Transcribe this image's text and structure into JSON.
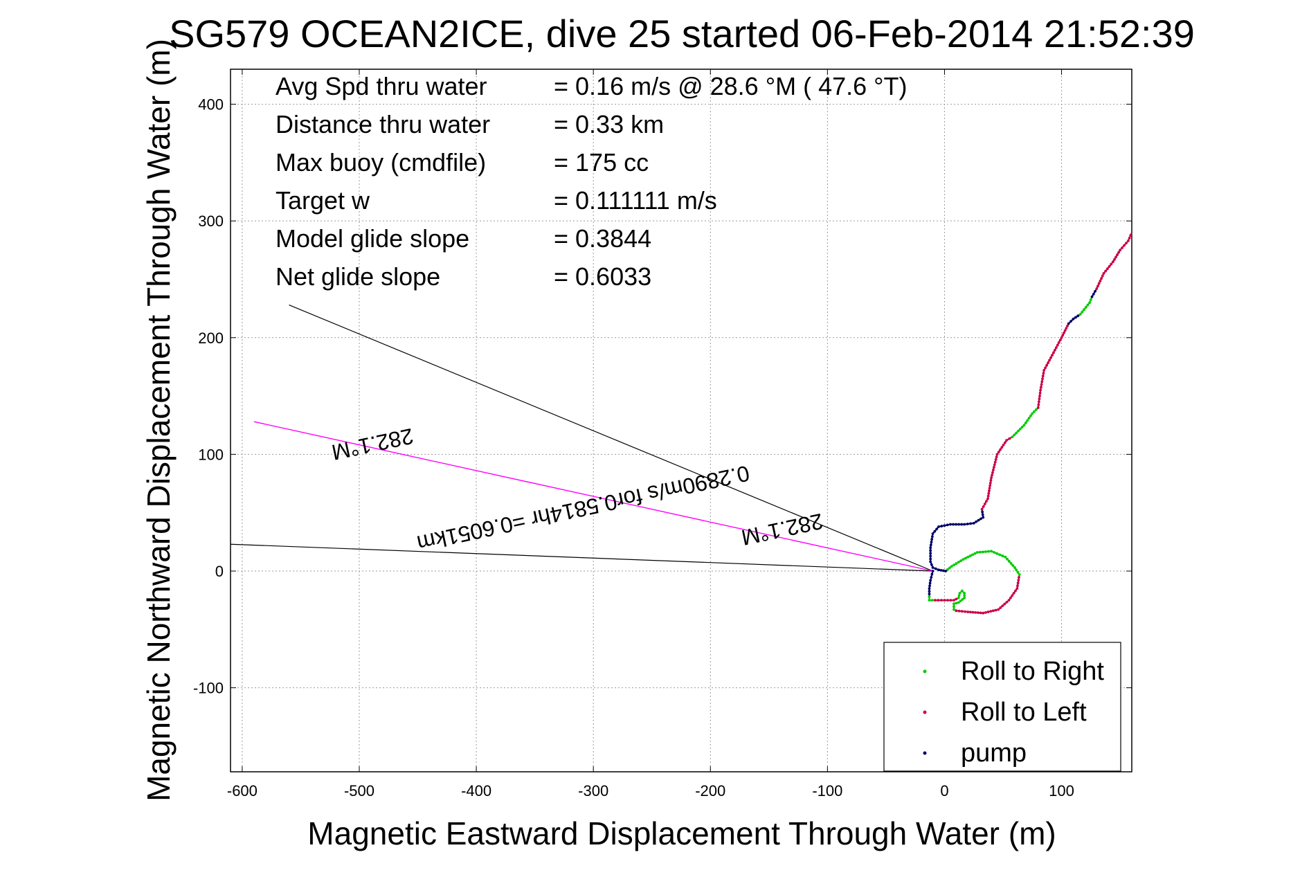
{
  "chart_data": {
    "type": "line",
    "title": "SG579 OCEAN2ICE, dive 25 started 06-Feb-2014 21:52:39",
    "xlabel": "Magnetic Eastward Displacement Through Water (m)",
    "ylabel": "Magnetic Northward Displacement Through Water (m)",
    "xlim": [
      -610,
      160
    ],
    "ylim": [
      -172,
      430
    ],
    "xticks": [
      -600,
      -500,
      -400,
      -300,
      -200,
      -100,
      0,
      100
    ],
    "yticks": [
      -100,
      0,
      100,
      200,
      300,
      400
    ],
    "grid": true,
    "legend_position": "bottom-right",
    "stats": [
      {
        "label": "Avg Spd thru water",
        "value": "=  0.16 m/s @  28.6 °M ( 47.6 °T)"
      },
      {
        "label": "Distance thru water",
        "value": "=  0.33 km"
      },
      {
        "label": "Max buoy (cmdfile)",
        "value": "= 175 cc"
      },
      {
        "label": "Target w",
        "value": "= 0.111111 m/s"
      },
      {
        "label": "Model glide slope",
        "value": "= 0.3844"
      },
      {
        "label": "Net glide slope",
        "value": "= 0.6033"
      }
    ],
    "colors": {
      "roll_right": "#00cc00",
      "roll_left": "#cc0044",
      "pump": "#000066",
      "current": "#ff00ff",
      "wedge": "#000000"
    },
    "series": [
      {
        "name": "Roll to Right",
        "color": "#00cc00",
        "marker": "dot"
      },
      {
        "name": "Roll to Left",
        "color": "#cc0044",
        "marker": "dot"
      },
      {
        "name": "pump",
        "color": "#000066",
        "marker": "dot"
      }
    ],
    "track": [
      {
        "mode": "pump",
        "points": [
          [
            -10,
            0
          ],
          [
            -12,
            -8
          ],
          [
            -13,
            -15
          ],
          [
            -13,
            -22
          ]
        ]
      },
      {
        "mode": "right",
        "points": [
          [
            -13,
            -22
          ],
          [
            -13,
            -25
          ],
          [
            -8,
            -25
          ]
        ]
      },
      {
        "mode": "left",
        "points": [
          [
            -8,
            -25
          ],
          [
            0,
            -25
          ],
          [
            8,
            -25
          ],
          [
            12,
            -23
          ]
        ]
      },
      {
        "mode": "right",
        "points": [
          [
            12,
            -23
          ],
          [
            13,
            -19
          ],
          [
            15,
            -17
          ],
          [
            17,
            -19
          ],
          [
            17,
            -23
          ],
          [
            12,
            -27
          ],
          [
            8,
            -28
          ],
          [
            8,
            -33
          ],
          [
            10,
            -34
          ]
        ]
      },
      {
        "mode": "left",
        "points": [
          [
            10,
            -34
          ],
          [
            20,
            -35
          ],
          [
            33,
            -36
          ],
          [
            46,
            -33
          ],
          [
            55,
            -25
          ],
          [
            62,
            -15
          ],
          [
            64,
            -3
          ]
        ]
      },
      {
        "mode": "right",
        "points": [
          [
            64,
            -3
          ],
          [
            60,
            3
          ],
          [
            52,
            12
          ],
          [
            40,
            17
          ],
          [
            28,
            16
          ],
          [
            16,
            10
          ],
          [
            6,
            4
          ],
          [
            1,
            0
          ]
        ]
      },
      {
        "mode": "pump",
        "points": [
          [
            1,
            0
          ],
          [
            -5,
            1
          ],
          [
            -10,
            3
          ],
          [
            -12,
            8
          ],
          [
            -12,
            20
          ],
          [
            -10,
            32
          ],
          [
            -5,
            38
          ],
          [
            5,
            40
          ],
          [
            17,
            40
          ],
          [
            25,
            41
          ],
          [
            33,
            46
          ],
          [
            32,
            53
          ]
        ]
      },
      {
        "mode": "left",
        "points": [
          [
            32,
            53
          ],
          [
            37,
            62
          ],
          [
            40,
            80
          ],
          [
            45,
            100
          ],
          [
            53,
            112
          ],
          [
            58,
            115
          ]
        ]
      },
      {
        "mode": "right",
        "points": [
          [
            58,
            115
          ],
          [
            68,
            125
          ],
          [
            75,
            135
          ],
          [
            80,
            140
          ]
        ]
      },
      {
        "mode": "left",
        "points": [
          [
            80,
            140
          ],
          [
            82,
            155
          ],
          [
            85,
            172
          ],
          [
            92,
            185
          ],
          [
            100,
            200
          ],
          [
            106,
            212
          ]
        ]
      },
      {
        "mode": "pump",
        "points": [
          [
            106,
            212
          ],
          [
            110,
            216
          ],
          [
            116,
            220
          ]
        ]
      },
      {
        "mode": "right",
        "points": [
          [
            116,
            220
          ],
          [
            124,
            230
          ],
          [
            126,
            235
          ]
        ]
      },
      {
        "mode": "pump",
        "points": [
          [
            126,
            235
          ],
          [
            130,
            242
          ]
        ]
      },
      {
        "mode": "left",
        "points": [
          [
            130,
            242
          ],
          [
            136,
            255
          ],
          [
            144,
            265
          ],
          [
            150,
            275
          ],
          [
            157,
            283
          ],
          [
            160,
            290
          ]
        ]
      }
    ],
    "current_line": {
      "from": [
        -10,
        0
      ],
      "to": [
        -590,
        128
      ]
    },
    "wedge_lines": [
      {
        "from": [
          -10,
          0
        ],
        "to": [
          -560,
          228
        ]
      },
      {
        "from": [
          -10,
          0
        ],
        "to": [
          -610,
          23
        ]
      }
    ],
    "annotations": [
      {
        "text": "0.2890m/s for0.5814hr =0.6051km",
        "x": -310,
        "y": 60,
        "rotation": 167.9
      },
      {
        "text": "282.1°M",
        "x": -140,
        "y": 42,
        "rotation": 167.9
      },
      {
        "text": "282.1°M",
        "x": -490,
        "y": 115,
        "rotation": 167.9
      }
    ]
  }
}
